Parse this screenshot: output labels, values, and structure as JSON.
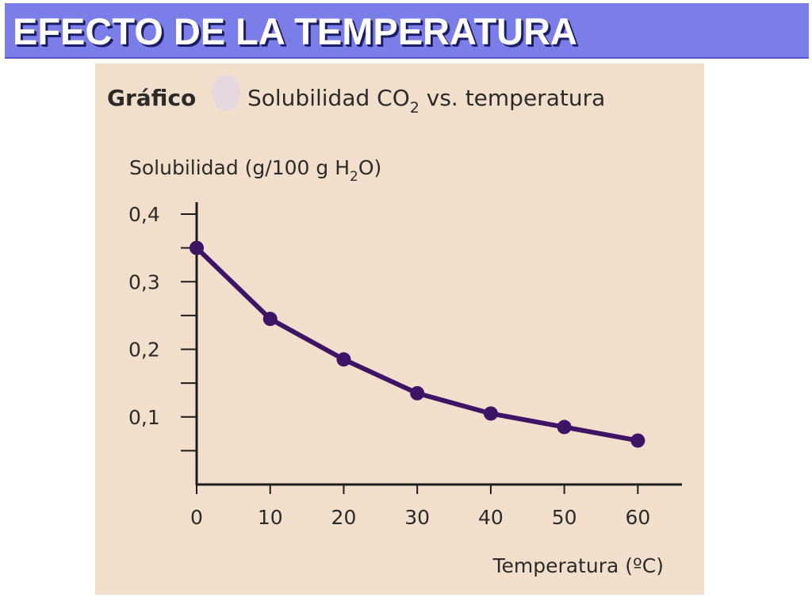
{
  "slide": {
    "title": "EFECTO DE LA TEMPERATURA"
  },
  "chart_data": {
    "type": "line",
    "caption_label": "Gráfico",
    "title": "Solubilidad CO",
    "title_subscript": "2",
    "title_suffix": " vs. temperatura",
    "ylabel": "Solubilidad (g/100 g H",
    "ylabel_subscript": "2",
    "ylabel_suffix": "O)",
    "xlabel": "Temperatura (ºC)",
    "x": [
      0,
      10,
      20,
      30,
      40,
      50,
      60
    ],
    "series": [
      {
        "values": [
          0.35,
          0.245,
          0.185,
          0.135,
          0.105,
          0.085,
          0.065
        ]
      }
    ],
    "xlim": [
      0,
      66
    ],
    "ylim": [
      0,
      0.4
    ],
    "x_ticks": [
      0,
      10,
      20,
      30,
      40,
      50,
      60
    ],
    "x_tick_labels": [
      "0",
      "10",
      "20",
      "30",
      "40",
      "50",
      "60"
    ],
    "y_ticks": [
      0.1,
      0.2,
      0.3,
      0.4
    ],
    "y_tick_labels": [
      "0,1",
      "0,2",
      "0,3",
      "0,4"
    ],
    "y_minor_ticks": [
      0.05,
      0.15,
      0.25,
      0.35
    ],
    "grid": false,
    "colors": {
      "line": "#3d1466",
      "marker": "#3d1466",
      "panel_background": "#f2dfcb",
      "title_bar": "#7b7de8",
      "icon": "#e4d7df"
    }
  }
}
